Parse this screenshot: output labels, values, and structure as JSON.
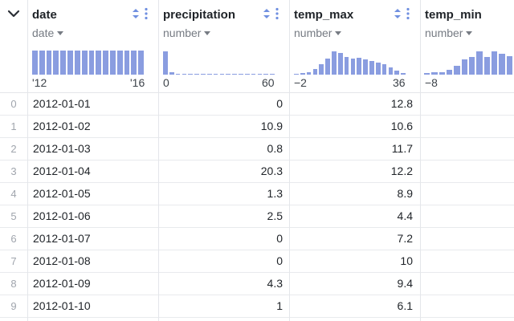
{
  "colors": {
    "histogram": "#8a9de0",
    "grid_line": "#e4e6ea",
    "icon_accent": "#6f8fe0"
  },
  "columns": [
    {
      "name": "date",
      "type": "date",
      "axis_lo": "'12",
      "axis_hi": "'16",
      "histogram": [
        0.9,
        0.9,
        0.9,
        0.9,
        0.9,
        0.9,
        0.9,
        0.9,
        0.9,
        0.9,
        0.9,
        0.9,
        0.9,
        0.9,
        0.9,
        0.9
      ]
    },
    {
      "name": "precipitation",
      "type": "number",
      "axis_lo": "0",
      "axis_hi": "60",
      "histogram": [
        0.88,
        0.08,
        0.04,
        0.03,
        0.03,
        0.03,
        0.02,
        0.02,
        0.02,
        0.02,
        0.02,
        0.02,
        0.02,
        0.02,
        0.02,
        0.02,
        0.02,
        0.02
      ]
    },
    {
      "name": "temp_max",
      "type": "number",
      "axis_lo": "−2",
      "axis_hi": "36",
      "histogram": [
        0.04,
        0.06,
        0.1,
        0.22,
        0.38,
        0.6,
        0.88,
        0.82,
        0.68,
        0.62,
        0.64,
        0.58,
        0.52,
        0.46,
        0.38,
        0.28,
        0.14,
        0.06
      ]
    },
    {
      "name": "temp_min",
      "type": "number",
      "axis_lo": "−8",
      "axis_hi": "",
      "histogram": [
        0.06,
        0.08,
        0.1,
        0.18,
        0.32,
        0.58,
        0.68,
        0.88,
        0.66,
        0.88,
        0.8,
        0.7
      ]
    }
  ],
  "rows": [
    {
      "index": "0",
      "date": "2012-01-01",
      "precipitation": "0",
      "temp_max": "12.8"
    },
    {
      "index": "1",
      "date": "2012-01-02",
      "precipitation": "10.9",
      "temp_max": "10.6"
    },
    {
      "index": "2",
      "date": "2012-01-03",
      "precipitation": "0.8",
      "temp_max": "11.7"
    },
    {
      "index": "3",
      "date": "2012-01-04",
      "precipitation": "20.3",
      "temp_max": "12.2"
    },
    {
      "index": "4",
      "date": "2012-01-05",
      "precipitation": "1.3",
      "temp_max": "8.9"
    },
    {
      "index": "5",
      "date": "2012-01-06",
      "precipitation": "2.5",
      "temp_max": "4.4"
    },
    {
      "index": "6",
      "date": "2012-01-07",
      "precipitation": "0",
      "temp_max": "7.2"
    },
    {
      "index": "7",
      "date": "2012-01-08",
      "precipitation": "0",
      "temp_max": "10"
    },
    {
      "index": "8",
      "date": "2012-01-09",
      "precipitation": "4.3",
      "temp_max": "9.4"
    },
    {
      "index": "9",
      "date": "2012-01-10",
      "precipitation": "1",
      "temp_max": "6.1"
    }
  ]
}
